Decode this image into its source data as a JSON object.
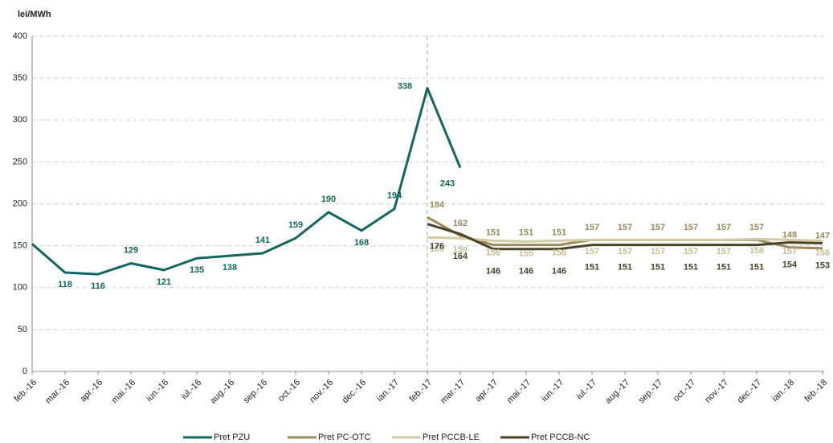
{
  "chart_data": {
    "type": "line",
    "y_axis_label": "lei/MWh",
    "categories": [
      "feb.-16",
      "mar.-16",
      "apr.-16",
      "mai.-16",
      "iun.-16",
      "iul.-16",
      "aug.-16",
      "sep.-16",
      "oct.-16",
      "nov.-16",
      "dec.-16",
      "ian.-17",
      "feb.-17",
      "mar.-17",
      "apr.-17",
      "mai.-17",
      "iun.-17",
      "iul.-17",
      "aug.-17",
      "sep.-17",
      "oct.-17",
      "nov.-17",
      "dec.-17",
      "ian.-18",
      "feb.-18"
    ],
    "series": [
      {
        "name": "Pret PZU",
        "color": "#11675f",
        "values": [
          152,
          118,
          116,
          129,
          121,
          135,
          138,
          141,
          159,
          190,
          168,
          194,
          338,
          243,
          null,
          null,
          null,
          null,
          null,
          null,
          null,
          null,
          null,
          null,
          null
        ],
        "value_labels": [
          null,
          "118",
          "116",
          "129",
          "121",
          "135",
          "138",
          "141",
          "159",
          "190",
          "168",
          "194",
          "338",
          "243",
          null,
          null,
          null,
          null,
          null,
          null,
          null,
          null,
          null,
          null,
          null
        ]
      },
      {
        "name": "Pret PC-OTC",
        "color": "#9a8a5c",
        "values": [
          null,
          null,
          null,
          null,
          null,
          null,
          null,
          null,
          null,
          null,
          null,
          null,
          184,
          162,
          151,
          151,
          151,
          157,
          157,
          157,
          157,
          157,
          157,
          148,
          147
        ]
      },
      {
        "name": "Pret PCCB-LE",
        "color": "#d3cba5",
        "values": [
          null,
          null,
          null,
          null,
          null,
          null,
          null,
          null,
          null,
          null,
          null,
          null,
          160,
          159,
          156,
          155,
          156,
          157,
          157,
          157,
          157,
          157,
          158,
          157,
          156
        ]
      },
      {
        "name": "Pret PCCB-NC",
        "color": "#4a4229",
        "values": [
          null,
          null,
          null,
          null,
          null,
          null,
          null,
          null,
          null,
          null,
          null,
          null,
          176,
          164,
          146,
          146,
          146,
          151,
          151,
          151,
          151,
          151,
          151,
          154,
          153
        ]
      }
    ],
    "ylim": [
      0,
      400
    ],
    "yticks": [
      0,
      50,
      100,
      150,
      200,
      250,
      300,
      350,
      400
    ],
    "grid": true
  }
}
